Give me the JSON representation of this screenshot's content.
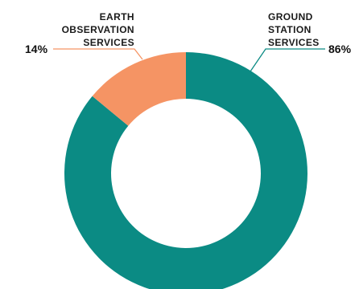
{
  "chart_data": {
    "type": "pie",
    "categories": [
      "GROUND STATION SERVICES",
      "EARTH OBSERVATION SERVICES"
    ],
    "values": [
      86,
      14
    ],
    "value_labels": [
      "86%",
      "14%"
    ],
    "label_lines": [
      [
        "GROUND",
        "STATION",
        "SERVICES"
      ],
      [
        "EARTH",
        "OBSERVATION",
        "SERVICES"
      ]
    ],
    "colors": [
      "#0b8b84",
      "#f59464"
    ],
    "style": "donut",
    "start": "top, clockwise"
  }
}
